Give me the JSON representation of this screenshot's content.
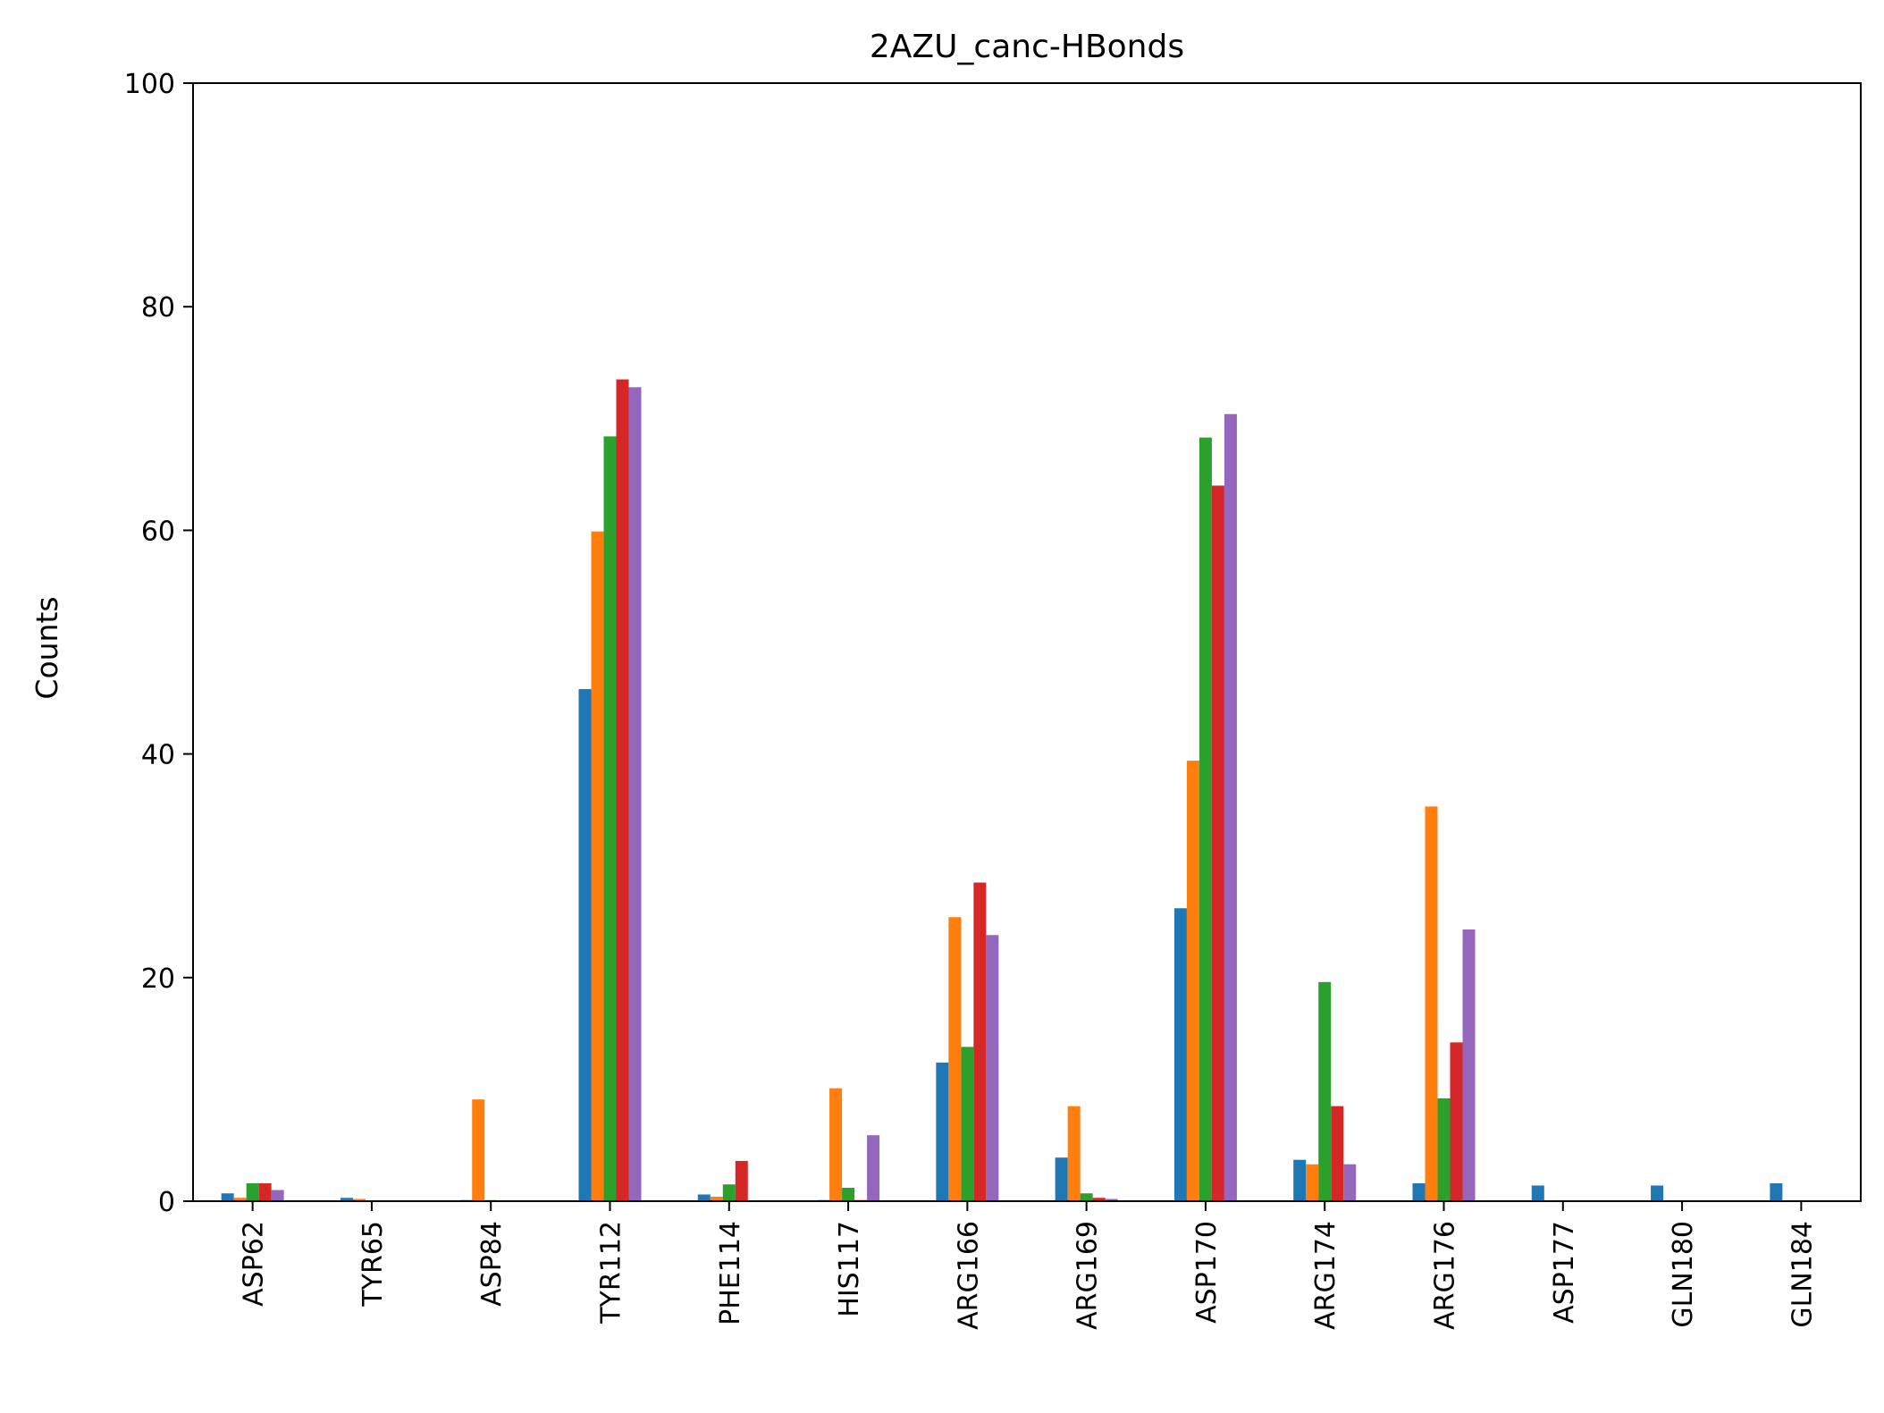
{
  "chart_data": {
    "type": "bar",
    "title": "2AZU_canc-HBonds",
    "xlabel": "",
    "ylabel": "Counts",
    "ylim": [
      0,
      100
    ],
    "yticks": [
      0,
      20,
      40,
      60,
      80,
      100
    ],
    "grid": false,
    "legend": "none",
    "categories": [
      "ASP62",
      "TYR65",
      "ASP84",
      "TYR112",
      "PHE114",
      "HIS117",
      "ARG166",
      "ARG169",
      "ASP170",
      "ARG174",
      "ARG176",
      "ASP177",
      "GLN180",
      "GLN184"
    ],
    "series": [
      {
        "color": "#1f77b4",
        "values": [
          0.7,
          0.3,
          0.1,
          45.8,
          0.6,
          0.1,
          12.4,
          3.9,
          26.2,
          3.7,
          1.6,
          1.4,
          1.4,
          1.6
        ]
      },
      {
        "color": "#ff7f0e",
        "values": [
          0.3,
          0.2,
          9.1,
          59.9,
          0.4,
          10.1,
          25.4,
          8.5,
          39.4,
          3.3,
          35.3,
          0.0,
          0.0,
          0.0
        ]
      },
      {
        "color": "#2ca02c",
        "values": [
          1.6,
          0.0,
          0.1,
          68.4,
          1.5,
          1.2,
          13.8,
          0.7,
          68.3,
          19.6,
          9.2,
          0.0,
          0.0,
          0.0
        ]
      },
      {
        "color": "#d62728",
        "values": [
          1.6,
          0.0,
          0.0,
          73.5,
          3.6,
          0.1,
          28.5,
          0.3,
          64.0,
          8.5,
          14.2,
          0.0,
          0.0,
          0.0
        ]
      },
      {
        "color": "#9467bd",
        "values": [
          1.0,
          0.0,
          0.0,
          72.8,
          0.0,
          5.9,
          23.8,
          0.2,
          70.4,
          3.3,
          24.3,
          0.0,
          0.0,
          0.0
        ]
      }
    ]
  }
}
